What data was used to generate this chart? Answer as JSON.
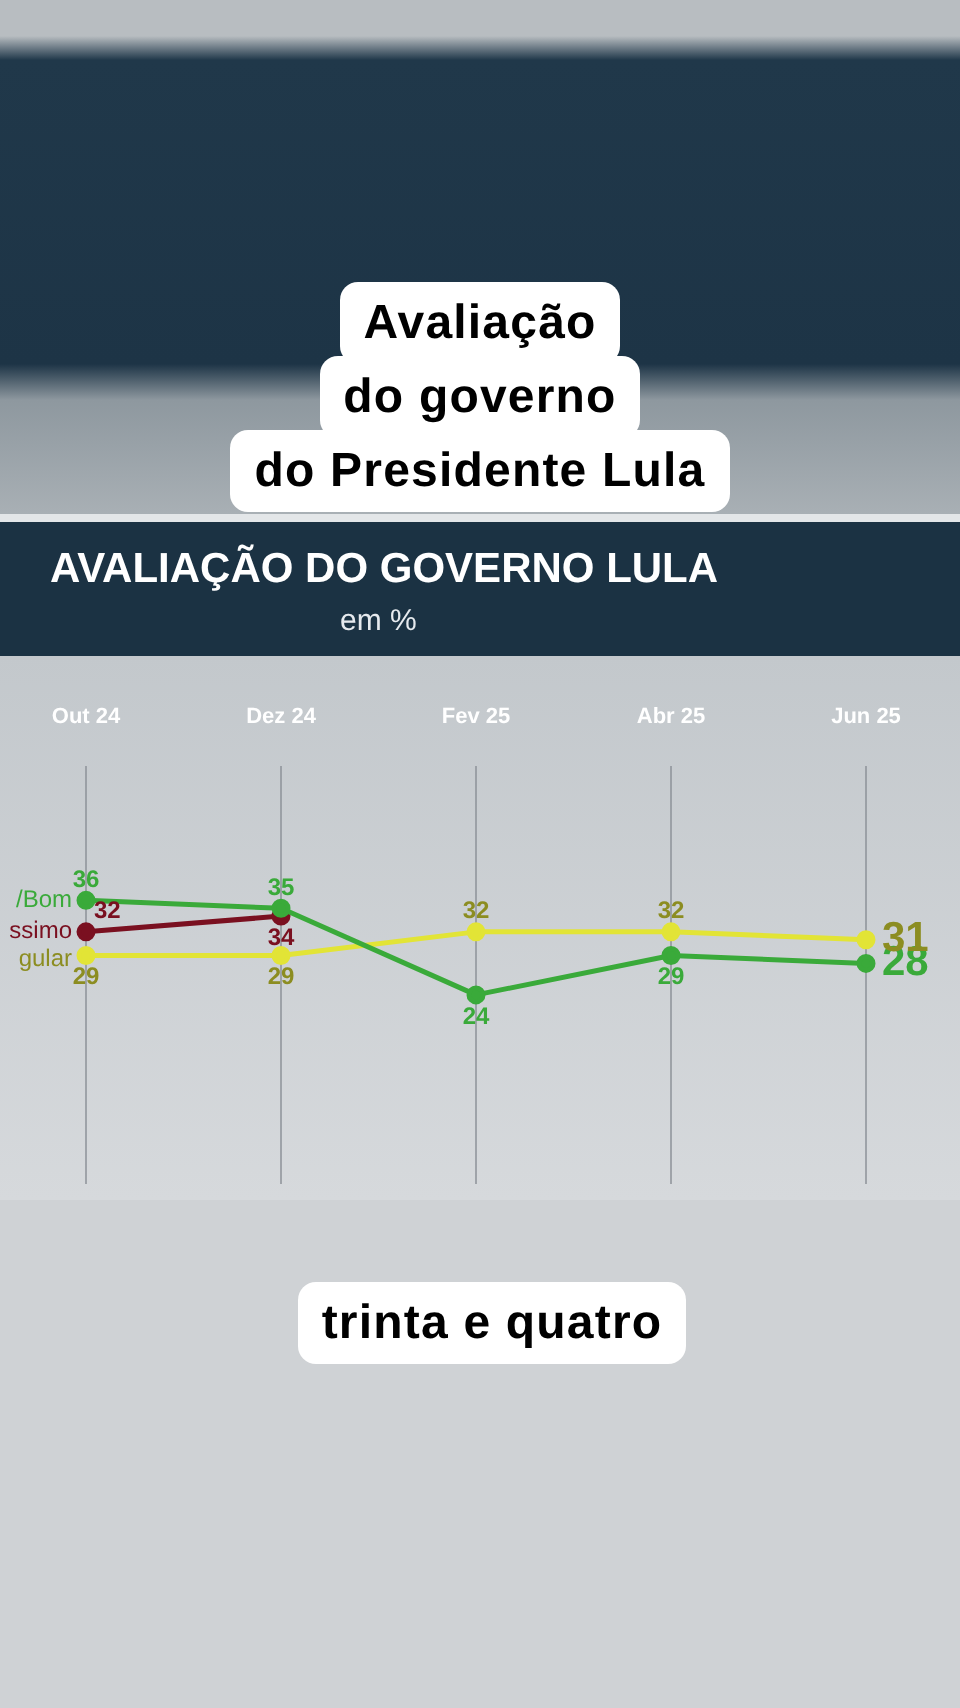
{
  "chart_data": {
    "type": "line",
    "title": "AVALIAÇÃO DO GOVERNO LULA",
    "subtitle": "em %",
    "annotations": [
      "Avaliação\ndo governo\ndo Presidente Lula",
      "trinta e quatro"
    ],
    "categories": [
      "Out 24",
      "Dez 24",
      "Fev 25",
      "Abr 25",
      "Jun 25"
    ],
    "series": [
      {
        "name": "/Bom",
        "color": "#3aaa3a",
        "values": [
          36,
          35,
          24,
          29,
          28
        ]
      },
      {
        "name": "ssimo",
        "color": "#7a1020",
        "values": [
          32,
          34,
          null,
          null,
          null
        ]
      },
      {
        "name": "gular",
        "color": "#e2e436",
        "values": [
          29,
          29,
          32,
          32,
          31
        ]
      }
    ],
    "ylim": [
      0,
      53
    ],
    "grid": "x",
    "tick_labels": "x",
    "marker": "circle",
    "line_style": "solid",
    "data_labels": true
  }
}
